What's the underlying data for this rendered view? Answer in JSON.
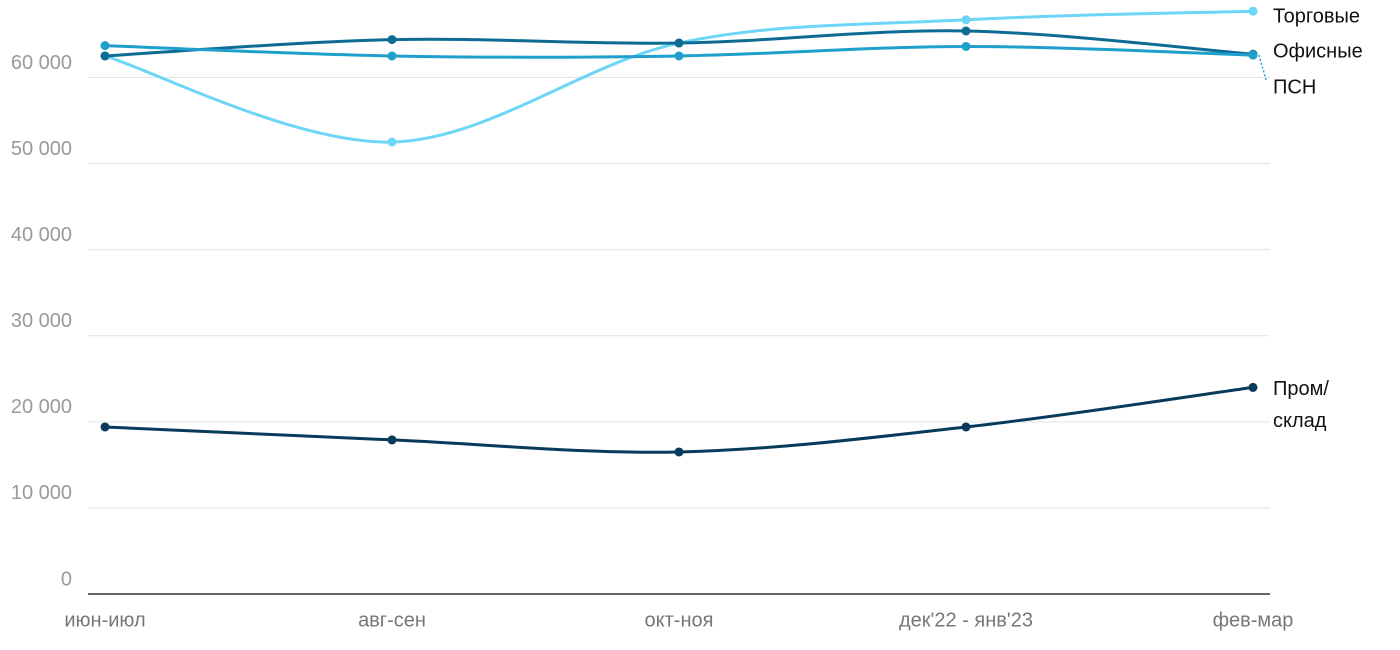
{
  "chart_data": {
    "type": "line",
    "categories": [
      "июн-июл",
      "авг-сен",
      "окт-ноя",
      "дек'22 - янв'23",
      "фев-мар"
    ],
    "series": [
      {
        "name": "Торговые",
        "color": "#6dd5f5",
        "values": [
          62500,
          52500,
          64000,
          66700,
          67700
        ]
      },
      {
        "name": "Офисные",
        "color": "#0e6b94",
        "values": [
          62500,
          64400,
          64000,
          65400,
          62700
        ]
      },
      {
        "name": "ПСН",
        "color": "#1fa0cc",
        "values": [
          63700,
          62500,
          62500,
          63600,
          62600
        ]
      },
      {
        "name": "Пром/\nсклад",
        "color": "#083a5c",
        "values": [
          19400,
          17900,
          16500,
          19400,
          24000
        ]
      }
    ],
    "ylim": [
      0,
      69000
    ],
    "yticks": [
      0,
      {
        "value": 10000,
        "label": "10 000"
      },
      {
        "value": 20000,
        "label": "20 000"
      },
      {
        "value": 30000,
        "label": "30 000"
      },
      {
        "value": 40000,
        "label": "40 000"
      },
      {
        "value": 50000,
        "label": "50 000"
      },
      {
        "value": 60000,
        "label": "60 000"
      }
    ],
    "grid": true
  }
}
